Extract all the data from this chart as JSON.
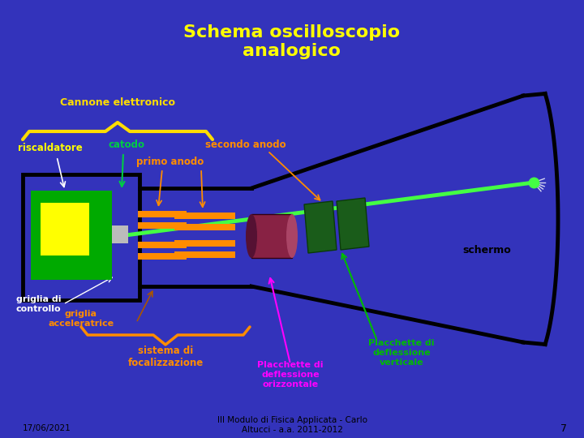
{
  "title": "Schema oscilloscopio\nanalogico",
  "bg_color": "#3333BB",
  "title_color": "#FFFF00",
  "title_fontsize": 16,
  "labels": {
    "cannone": "Cannone elettronico",
    "riscaldatore": "riscaldatore",
    "catodo": "catodo",
    "primo_anodo": "primo anodo",
    "secondo_anodo": "secondo anodo",
    "schermo": "schermo",
    "griglia_controllo": "griglia di\ncontrollo",
    "griglia_acceleratrice": "griglia\nacceleratrice",
    "sistema_foc": "sistema di\nfocalizzazione",
    "placchette_h": "Placchette di\ndeflessione\norizzontale",
    "placchette_v": "Placchette di\ndeflessione\nverticale",
    "footer": "17/06/2021",
    "footer2": "III Modulo di Fisica Applicata - Carlo\nAltucci - a.a. 2011-2012",
    "footer3": "7"
  },
  "colors": {
    "orange": "#FF8C00",
    "yellow": "#FFFF00",
    "green_label": "#00CC44",
    "green_beam": "#44FF44",
    "white": "#FFFFFF",
    "black": "#000000",
    "dark_green_block": "#00AA00",
    "dark_green2": "#226622",
    "purple": "#882244",
    "magenta": "#FF00FF",
    "lt_green": "#00DD00",
    "brace_yellow": "#FFDD00"
  }
}
